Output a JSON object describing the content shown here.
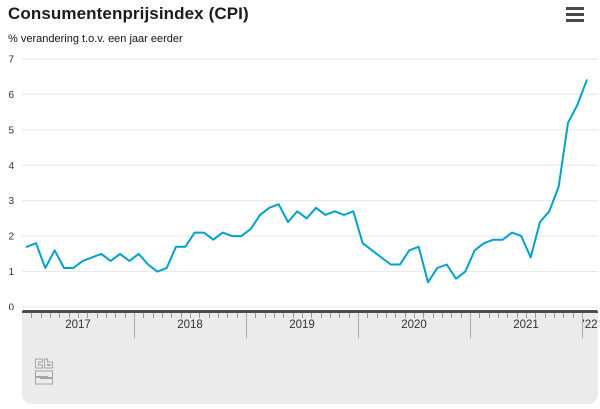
{
  "header": {
    "title": "Consumentenprijsindex (CPI)",
    "subtitle": "% verandering t.o.v. een jaar eerder",
    "menu_icon": "hamburger-menu-icon"
  },
  "footer": {
    "logo_icon": "cbs-logo"
  },
  "colors": {
    "line": "#00a1cd",
    "grid": "#e6e6e6",
    "band_background": "#ebebeb",
    "band_top_line": "#4d4d4d",
    "tick": "#9a9a9a",
    "separator": "#aaaaaa",
    "axis_text": "#333333"
  },
  "chart_data": {
    "type": "line",
    "title": "Consumentenprijsindex (CPI)",
    "subtitle": "% verandering t.o.v. een jaar eerder",
    "x_start": "2017-01",
    "x_end": "2022-01",
    "x_tick_labels": [
      "2017",
      "2018",
      "2019",
      "2020",
      "2021",
      "'22"
    ],
    "yticks": [
      0,
      1,
      2,
      3,
      4,
      5,
      6,
      7
    ],
    "ylim": [
      0,
      7
    ],
    "grid": true,
    "legend": "none",
    "series": [
      {
        "name": "CPI % verandering",
        "color": "#00a1cd",
        "values": [
          1.7,
          1.8,
          1.1,
          1.6,
          1.1,
          1.1,
          1.3,
          1.4,
          1.5,
          1.3,
          1.5,
          1.3,
          1.5,
          1.2,
          1.0,
          1.1,
          1.7,
          1.7,
          2.1,
          2.1,
          1.9,
          2.1,
          2.0,
          2.0,
          2.2,
          2.6,
          2.8,
          2.9,
          2.4,
          2.7,
          2.5,
          2.8,
          2.6,
          2.7,
          2.6,
          2.7,
          1.8,
          1.6,
          1.4,
          1.2,
          1.2,
          1.6,
          1.7,
          0.7,
          1.1,
          1.2,
          0.8,
          1.0,
          1.6,
          1.8,
          1.9,
          1.9,
          2.1,
          2.0,
          1.4,
          2.4,
          2.7,
          3.4,
          5.2,
          5.7,
          6.4
        ]
      }
    ]
  }
}
